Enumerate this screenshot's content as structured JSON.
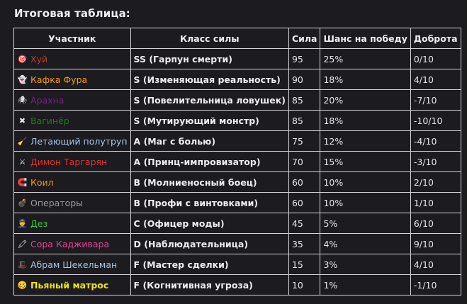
{
  "title": "Итоговая таблица:",
  "headers": {
    "participant": "Участник",
    "class": "Класс силы",
    "power": "Сила",
    "chance": "Шанс на победу",
    "kindness": "Доброта"
  },
  "rows": [
    {
      "icon": "🎯",
      "icon_name": "target-icon",
      "name": "Хуй",
      "color": "#c0392b",
      "bold": false,
      "class": "SS (Гарпун смерти)",
      "power": "95",
      "chance": "25%",
      "kindness": "0/10"
    },
    {
      "icon": "👻",
      "icon_name": "ghost-icon",
      "name": "Кафка Фура",
      "color": "#f39c12",
      "bold": false,
      "class": "S (Изменяющая реальность)",
      "power": "90",
      "chance": "18%",
      "kindness": "4/10"
    },
    {
      "icon": "🕷",
      "icon_name": "spider-icon",
      "name": "Арахна",
      "color": "#7e1e8c",
      "bold": false,
      "class": "S (Повелительница ловушек)",
      "power": "85",
      "chance": "20%",
      "kindness": "-7/10"
    },
    {
      "icon": "✖",
      "icon_name": "cross-mark-icon",
      "name": "Вагинёр",
      "color": "#1f7a1f",
      "bold": false,
      "class": "S (Мутирующий монстр)",
      "power": "85",
      "chance": "18%",
      "kindness": "-10/10"
    },
    {
      "icon": "🧹",
      "icon_name": "broom-icon",
      "name": "Летающий полутруп",
      "color": "#a9c7e8",
      "bold": false,
      "class": "A (Маг с болью)",
      "power": "75",
      "chance": "12%",
      "kindness": "-4/10"
    },
    {
      "icon": "⚔",
      "icon_name": "crossed-swords-icon",
      "name": "Димон Таргарян",
      "color": "#e03030",
      "bold": false,
      "class": "A (Принц-импровизатор)",
      "power": "70",
      "chance": "15%",
      "kindness": "-3/10"
    },
    {
      "icon": "🧲",
      "icon_name": "magnet-icon",
      "name": "Коил",
      "color": "#f39c12",
      "bold": false,
      "class": "B (Молниеносный боец)",
      "power": "60",
      "chance": "10%",
      "kindness": "2/10"
    },
    {
      "icon": "💣",
      "icon_name": "bomb-icon",
      "name": "Операторы",
      "color": "#9a9a9a",
      "bold": false,
      "class": "B (Профи с винтовками)",
      "power": "60",
      "chance": "10%",
      "kindness": "1/10"
    },
    {
      "icon": "👮",
      "icon_name": "police-officer-icon",
      "name": "Дез",
      "color": "#2ecc40",
      "bold": false,
      "class": "C (Офицер моды)",
      "power": "45",
      "chance": "5%",
      "kindness": "6/10"
    },
    {
      "icon": "🖍",
      "icon_name": "crayon-icon",
      "name": "Сора Кадживара",
      "color": "#e84393",
      "bold": false,
      "class": "D (Наблюдательница)",
      "power": "35",
      "chance": "4%",
      "kindness": "9/10"
    },
    {
      "icon": "🎩",
      "icon_name": "top-hat-icon",
      "name": "Абрам Шекельман",
      "color": "#a9c7e8",
      "bold": false,
      "class": "F (Мастер сделки)",
      "power": "15",
      "chance": "3%",
      "kindness": "4/10"
    },
    {
      "icon": "🥴",
      "icon_name": "woozy-face-icon",
      "name": "Пьяный матрос",
      "color": "#f1e40f",
      "bold": true,
      "class": "F (Когнитивная угроза)",
      "power": "10",
      "chance": "1%",
      "kindness": "-1/10"
    }
  ]
}
